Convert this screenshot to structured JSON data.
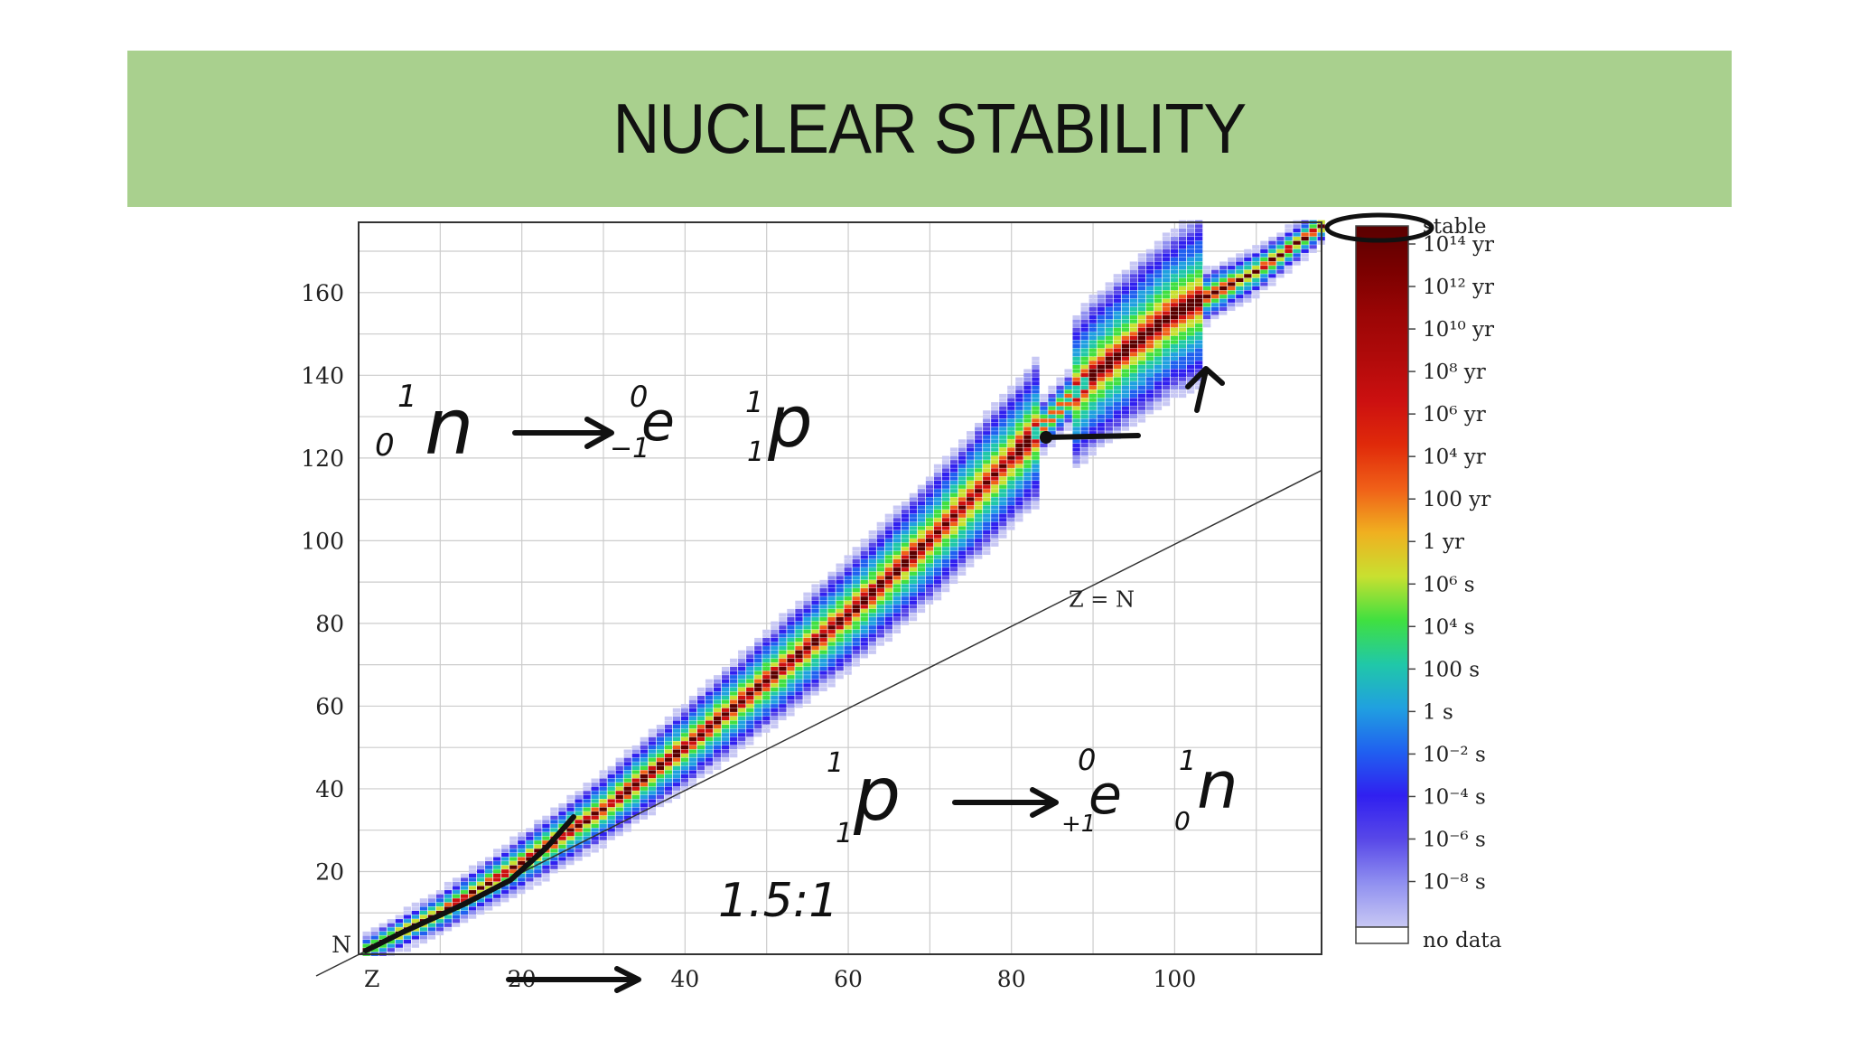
{
  "slide": {
    "title": "NUCLEAR STABILITY"
  },
  "chart_data": {
    "type": "heatmap",
    "title": "",
    "xlabel": "Z",
    "ylabel": "N",
    "xlim": [
      0,
      118
    ],
    "ylim": [
      0,
      177
    ],
    "x_ticks": [
      20,
      40,
      60,
      80,
      100
    ],
    "y_ticks": [
      20,
      40,
      60,
      80,
      100,
      120,
      140,
      160
    ],
    "grid": true,
    "reference_line": {
      "label": "Z = N",
      "slope": 1
    },
    "stability_band": {
      "description_points_Z": [
        1,
        10,
        20,
        30,
        40,
        50,
        60,
        70,
        80,
        90,
        100,
        110,
        118
      ],
      "description_points_N_center": [
        1,
        10,
        22,
        35,
        50,
        66,
        82,
        100,
        120,
        140,
        155,
        165,
        176
      ]
    },
    "colorbar": {
      "labels": [
        "stable",
        "10¹⁴ yr",
        "10¹² yr",
        "10¹⁰ yr",
        "10⁸ yr",
        "10⁶ yr",
        "10⁴ yr",
        "100 yr",
        "1 yr",
        "10⁶ s",
        "10⁴ s",
        "100 s",
        "1 s",
        "10⁻² s",
        "10⁻⁴ s",
        "10⁻⁶ s",
        "10⁻⁸ s",
        "no data"
      ],
      "colors": [
        "#5a0000",
        "#7a0000",
        "#9a0505",
        "#b00a0a",
        "#cc1010",
        "#e02a0a",
        "#f06018",
        "#f0b020",
        "#c8e030",
        "#40e040",
        "#20c8a8",
        "#20a0e0",
        "#2060f0",
        "#3020f0",
        "#5848e8",
        "#9090f0",
        "#c8c8f4",
        "#ffffff"
      ]
    },
    "annotations": {
      "neutron_decay_left": "n",
      "neutron_decay_products": "e",
      "neutron_decay_result": "p",
      "neutron_mass": "1",
      "neutron_charge": "0",
      "electron_mass": "0",
      "electron_charge": "−1",
      "proton_mass": "1",
      "proton_charge": "1",
      "proton_decay_left": "p",
      "positron": "e",
      "positron_mass": "0",
      "positron_charge": "+1",
      "proton_decay_result": "n",
      "ratio": "1.5:1"
    }
  },
  "colors": {
    "banner": "#a9d08e",
    "grid": "#cccccc"
  }
}
